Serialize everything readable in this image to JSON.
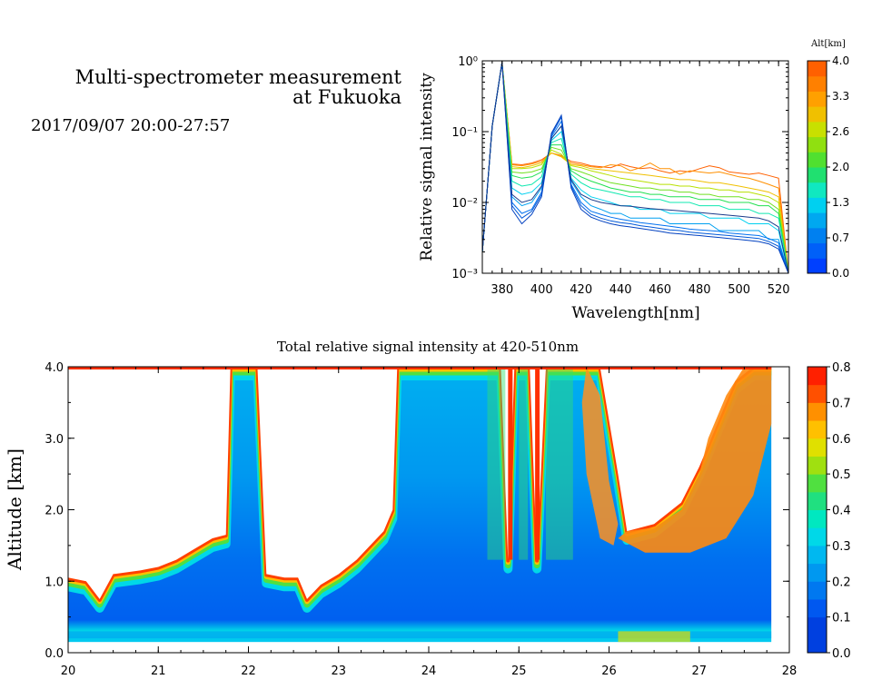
{
  "header": {
    "title_line1": "Multi-spectrometer measurement",
    "title_line2": "at Fukuoka",
    "datetime": "2017/09/07 20:00-27:57"
  },
  "colors": {
    "spectrum_palette": [
      "#0040ff",
      "#0070f0",
      "#00a0f0",
      "#00d0f0",
      "#10e8b0",
      "#20e050",
      "#70e020",
      "#b8e000",
      "#f0c000",
      "#ff9000",
      "#ff6000"
    ],
    "heatmap_palette": [
      "#0040e0",
      "#0058f0",
      "#0078f0",
      "#0098f0",
      "#00b8f0",
      "#00d8e8",
      "#00e8c0",
      "#20e080",
      "#50e040",
      "#a0e010",
      "#e0e000",
      "#ffc000",
      "#ff9000",
      "#ff5000",
      "#ff2000"
    ]
  },
  "chart_data": [
    {
      "type": "line",
      "title": "",
      "xlabel": "Wavelength[nm]",
      "ylabel": "Relative signal intensity",
      "yscale": "log",
      "xlim": [
        370,
        525
      ],
      "ylim": [
        0.001,
        1
      ],
      "x_ticks": [
        "380",
        "400",
        "420",
        "440",
        "460",
        "480",
        "500",
        "520"
      ],
      "y_ticks": [
        "10⁻³",
        "10⁻²",
        "10⁻¹",
        "10⁰"
      ],
      "colorbar": {
        "title": "Alt[km]",
        "ticks": [
          "4.0",
          "3.3",
          "2.6",
          "2.0",
          "1.3",
          "0.7",
          "0.0"
        ]
      },
      "x": [
        370,
        375,
        380,
        385,
        390,
        395,
        400,
        405,
        410,
        415,
        420,
        425,
        430,
        435,
        440,
        445,
        450,
        455,
        460,
        465,
        470,
        475,
        480,
        485,
        490,
        495,
        500,
        505,
        510,
        515,
        520,
        525
      ],
      "series": [
        {
          "altitude_km": 4.0,
          "color": "#ff6000",
          "values": [
            0.002,
            0.12,
            0.95,
            0.035,
            0.034,
            0.036,
            0.04,
            0.05,
            0.046,
            0.038,
            0.036,
            0.033,
            0.032,
            0.031,
            0.035,
            0.032,
            0.03,
            0.031,
            0.028,
            0.026,
            0.028,
            0.027,
            0.03,
            0.033,
            0.031,
            0.027,
            0.026,
            0.025,
            0.026,
            0.024,
            0.022,
            0.001
          ]
        },
        {
          "altitude_km": 3.6,
          "color": "#ff9000",
          "values": [
            0.002,
            0.12,
            0.95,
            0.034,
            0.033,
            0.035,
            0.038,
            0.05,
            0.045,
            0.036,
            0.034,
            0.032,
            0.031,
            0.034,
            0.033,
            0.028,
            0.031,
            0.036,
            0.03,
            0.03,
            0.025,
            0.028,
            0.027,
            0.026,
            0.027,
            0.025,
            0.023,
            0.022,
            0.02,
            0.018,
            0.016,
            0.001
          ]
        },
        {
          "altitude_km": 3.2,
          "color": "#f0c000",
          "values": [
            0.002,
            0.12,
            0.95,
            0.032,
            0.031,
            0.033,
            0.036,
            0.05,
            0.044,
            0.034,
            0.033,
            0.03,
            0.029,
            0.028,
            0.027,
            0.026,
            0.025,
            0.024,
            0.023,
            0.022,
            0.021,
            0.021,
            0.02,
            0.019,
            0.019,
            0.018,
            0.017,
            0.016,
            0.015,
            0.014,
            0.012,
            0.001
          ]
        },
        {
          "altitude_km": 2.8,
          "color": "#b8e000",
          "values": [
            0.002,
            0.12,
            0.95,
            0.03,
            0.03,
            0.031,
            0.034,
            0.055,
            0.048,
            0.033,
            0.031,
            0.028,
            0.026,
            0.024,
            0.022,
            0.021,
            0.02,
            0.019,
            0.018,
            0.018,
            0.017,
            0.017,
            0.016,
            0.016,
            0.015,
            0.015,
            0.014,
            0.014,
            0.013,
            0.012,
            0.01,
            0.001
          ]
        },
        {
          "altitude_km": 2.4,
          "color": "#70e020",
          "values": [
            0.002,
            0.12,
            0.95,
            0.027,
            0.026,
            0.027,
            0.03,
            0.06,
            0.055,
            0.03,
            0.027,
            0.024,
            0.021,
            0.019,
            0.018,
            0.017,
            0.016,
            0.016,
            0.015,
            0.015,
            0.014,
            0.014,
            0.013,
            0.013,
            0.012,
            0.012,
            0.012,
            0.011,
            0.011,
            0.01,
            0.008,
            0.001
          ]
        },
        {
          "altitude_km": 2.0,
          "color": "#20e050",
          "values": [
            0.002,
            0.12,
            0.95,
            0.024,
            0.022,
            0.023,
            0.027,
            0.065,
            0.065,
            0.028,
            0.023,
            0.02,
            0.018,
            0.016,
            0.015,
            0.014,
            0.014,
            0.013,
            0.013,
            0.012,
            0.012,
            0.012,
            0.011,
            0.011,
            0.011,
            0.01,
            0.01,
            0.01,
            0.009,
            0.009,
            0.007,
            0.001
          ]
        },
        {
          "altitude_km": 1.6,
          "color": "#10e8b0",
          "values": [
            0.002,
            0.12,
            0.95,
            0.02,
            0.017,
            0.018,
            0.023,
            0.07,
            0.08,
            0.025,
            0.019,
            0.016,
            0.015,
            0.014,
            0.013,
            0.012,
            0.012,
            0.011,
            0.011,
            0.01,
            0.01,
            0.01,
            0.009,
            0.009,
            0.009,
            0.008,
            0.008,
            0.008,
            0.007,
            0.007,
            0.006,
            0.001
          ]
        },
        {
          "altitude_km": 1.2,
          "color": "#00d0f0",
          "values": [
            0.002,
            0.12,
            0.95,
            0.016,
            0.013,
            0.014,
            0.019,
            0.075,
            0.1,
            0.022,
            0.015,
            0.012,
            0.011,
            0.01,
            0.009,
            0.009,
            0.008,
            0.008,
            0.008,
            0.007,
            0.007,
            0.007,
            0.007,
            0.006,
            0.006,
            0.006,
            0.006,
            0.005,
            0.005,
            0.005,
            0.004,
            0.001
          ]
        },
        {
          "altitude_km": 0.8,
          "color": "#00a0f0",
          "values": [
            0.002,
            0.12,
            0.95,
            0.012,
            0.009,
            0.01,
            0.016,
            0.08,
            0.12,
            0.02,
            0.012,
            0.009,
            0.008,
            0.007,
            0.007,
            0.006,
            0.006,
            0.006,
            0.006,
            0.005,
            0.005,
            0.005,
            0.005,
            0.005,
            0.004,
            0.004,
            0.004,
            0.004,
            0.004,
            0.003,
            0.003,
            0.001
          ]
        },
        {
          "altitude_km": 0.5,
          "color": "#0070f0",
          "values": [
            0.002,
            0.12,
            0.95,
            0.01,
            0.007,
            0.008,
            0.014,
            0.085,
            0.14,
            0.018,
            0.01,
            0.0075,
            0.0068,
            0.0062,
            0.0058,
            0.0055,
            0.0052,
            0.005,
            0.0048,
            0.0046,
            0.0044,
            0.0042,
            0.0041,
            0.004,
            0.0039,
            0.0037,
            0.0036,
            0.0035,
            0.0034,
            0.0031,
            0.0027,
            0.001
          ]
        },
        {
          "altitude_km": 0.3,
          "color": "#0058d8",
          "values": [
            0.002,
            0.12,
            0.95,
            0.009,
            0.006,
            0.0075,
            0.013,
            0.09,
            0.16,
            0.017,
            0.009,
            0.0068,
            0.006,
            0.0055,
            0.0052,
            0.005,
            0.0047,
            0.0045,
            0.0043,
            0.0041,
            0.004,
            0.0038,
            0.0037,
            0.0036,
            0.0035,
            0.0034,
            0.0033,
            0.0032,
            0.0031,
            0.0028,
            0.0024,
            0.001
          ]
        },
        {
          "altitude_km": 0.1,
          "color": "#0040c0",
          "values": [
            0.002,
            0.12,
            0.95,
            0.008,
            0.005,
            0.0068,
            0.012,
            0.095,
            0.17,
            0.016,
            0.008,
            0.0062,
            0.0055,
            0.005,
            0.0047,
            0.0045,
            0.0043,
            0.0041,
            0.0039,
            0.0037,
            0.0036,
            0.0035,
            0.0034,
            0.0033,
            0.0032,
            0.0031,
            0.003,
            0.0029,
            0.0028,
            0.0026,
            0.0022,
            0.001
          ]
        },
        {
          "altitude_km": 0.0,
          "color": "#1a3a8a",
          "values": [
            0.002,
            0.12,
            0.95,
            0.013,
            0.01,
            0.011,
            0.017,
            0.08,
            0.12,
            0.021,
            0.013,
            0.011,
            0.01,
            0.0095,
            0.009,
            0.0088,
            0.0085,
            0.0082,
            0.008,
            0.0078,
            0.0076,
            0.0074,
            0.0072,
            0.007,
            0.0068,
            0.0066,
            0.0064,
            0.0062,
            0.006,
            0.0055,
            0.0045,
            0.001
          ]
        }
      ]
    },
    {
      "type": "heatmap",
      "title": "Total relative signal intensity at 420-510nm",
      "xlabel": "",
      "ylabel": "Altitude [km]",
      "xlim": [
        20,
        28
      ],
      "ylim": [
        0,
        4
      ],
      "x_ticks": [
        "20",
        "21",
        "22",
        "23",
        "24",
        "25",
        "26",
        "27",
        "28"
      ],
      "y_ticks": [
        "0.0",
        "1.0",
        "2.0",
        "3.0",
        "4.0"
      ],
      "colorbar": {
        "ticks": [
          "0.8",
          "0.7",
          "0.6",
          "0.5",
          "0.4",
          "0.3",
          "0.2",
          "0.1",
          "0.0"
        ],
        "range": [
          0,
          0.8
        ]
      },
      "data_extent_hours": [
        20.0,
        27.8
      ],
      "data_extent_km": [
        0.15,
        4.0
      ],
      "cloud_base_km": [
        [
          20.0,
          1.05
        ],
        [
          20.2,
          1.0
        ],
        [
          20.35,
          0.75
        ],
        [
          20.5,
          1.1
        ],
        [
          20.8,
          1.15
        ],
        [
          21.0,
          1.2
        ],
        [
          21.2,
          1.3
        ],
        [
          21.4,
          1.45
        ],
        [
          21.6,
          1.6
        ],
        [
          21.75,
          1.65
        ],
        [
          21.8,
          4.0
        ],
        [
          22.1,
          4.0
        ],
        [
          22.2,
          1.1
        ],
        [
          22.4,
          1.05
        ],
        [
          22.55,
          1.05
        ],
        [
          22.65,
          0.75
        ],
        [
          22.8,
          0.95
        ],
        [
          23.0,
          1.1
        ],
        [
          23.2,
          1.3
        ],
        [
          23.35,
          1.5
        ],
        [
          23.5,
          1.7
        ],
        [
          23.6,
          2.0
        ],
        [
          23.65,
          4.0
        ],
        [
          24.8,
          4.0
        ],
        [
          24.88,
          1.3
        ],
        [
          24.95,
          4.0
        ],
        [
          25.12,
          4.0
        ],
        [
          25.2,
          1.3
        ],
        [
          25.3,
          4.0
        ],
        [
          25.9,
          4.0
        ],
        [
          26.1,
          2.5
        ],
        [
          26.2,
          1.7
        ],
        [
          26.5,
          1.8
        ],
        [
          26.8,
          2.1
        ],
        [
          27.0,
          2.6
        ],
        [
          27.2,
          3.2
        ],
        [
          27.4,
          3.8
        ],
        [
          27.6,
          4.0
        ],
        [
          27.8,
          4.0
        ]
      ],
      "clear_regions_hours": [
        [
          21.75,
          21.85
        ],
        [
          22.2,
          23.6
        ],
        [
          25.9,
          27.2
        ]
      ]
    }
  ]
}
